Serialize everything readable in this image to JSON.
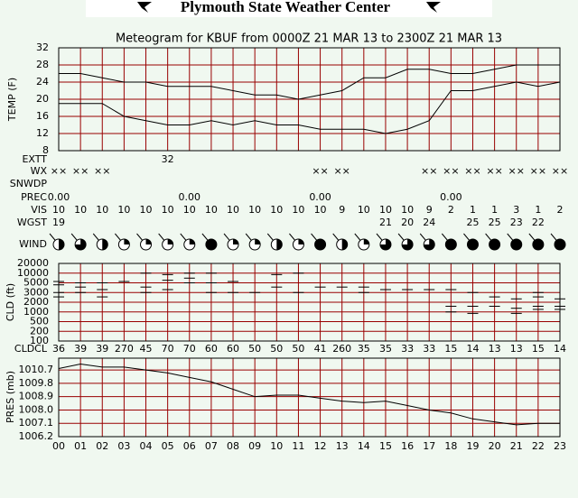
{
  "header": {
    "title": "Plymouth State Weather Center"
  },
  "chart_data": [
    {
      "type": "line",
      "title": "Meteogram for KBUF from 0000Z 21 MAR 13 to 2300Z 21 MAR 13",
      "y_label": "TEMP (F)",
      "ylim": [
        8,
        32
      ],
      "yticks": [
        8,
        12,
        16,
        20,
        24,
        28,
        32
      ],
      "grid": true,
      "series": [
        {
          "color": "#000000",
          "values": [
            26,
            26,
            25,
            24,
            24,
            23,
            23,
            23,
            22,
            21,
            21,
            20,
            21,
            22,
            25,
            25,
            27,
            27,
            26,
            26,
            27,
            28,
            28,
            28
          ]
        },
        {
          "color": "#000000",
          "values": [
            19,
            19,
            19,
            16,
            15,
            14,
            14,
            15,
            14,
            15,
            14,
            14,
            13,
            13,
            13,
            12,
            13,
            15,
            22,
            22,
            23,
            24,
            23,
            24
          ]
        }
      ]
    },
    {
      "type": "scatter",
      "y_label": "CLD (ft)",
      "log_scale": true,
      "color": "#000000",
      "ylim": [
        100,
        20000
      ],
      "yticks": [
        20000,
        10000,
        5000,
        3000,
        2000,
        1000,
        500,
        200,
        100
      ],
      "grid": true,
      "x": [
        0,
        0,
        0,
        0,
        1,
        1,
        1,
        2,
        2,
        2,
        3,
        3,
        4,
        4,
        4,
        4,
        5,
        5,
        5,
        5,
        6,
        6,
        6,
        6,
        7,
        7,
        7,
        7,
        8,
        8,
        8,
        9,
        9,
        10,
        10,
        10,
        11,
        11,
        11,
        12,
        12,
        13,
        13,
        14,
        14,
        14,
        15,
        16,
        17,
        18,
        18,
        18,
        19,
        19,
        19,
        20,
        20,
        21,
        21,
        21,
        22,
        22,
        22,
        22,
        23,
        23,
        23
      ],
      "y": [
        5500,
        4500,
        3000,
        2500,
        5000,
        4000,
        3000,
        5000,
        3500,
        2500,
        20000,
        5500,
        20000,
        10000,
        4000,
        3000,
        20000,
        9000,
        6000,
        3500,
        20000,
        10000,
        7000,
        5000,
        20000,
        10000,
        5000,
        3000,
        20000,
        5500,
        3000,
        20000,
        3000,
        20000,
        9000,
        4000,
        20000,
        10000,
        3000,
        20000,
        4000,
        20000,
        4000,
        20000,
        4000,
        3000,
        3500,
        3500,
        3500,
        3500,
        1500,
        1000,
        3000,
        1500,
        900,
        2500,
        1500,
        2300,
        1300,
        900,
        3000,
        2500,
        1500,
        1200,
        2300,
        1500,
        1200
      ]
    },
    {
      "type": "line",
      "y_label": "PRES (mb)",
      "categories": [
        "00",
        "01",
        "02",
        "03",
        "04",
        "05",
        "06",
        "07",
        "08",
        "09",
        "10",
        "11",
        "12",
        "13",
        "14",
        "15",
        "16",
        "17",
        "18",
        "19",
        "20",
        "21",
        "22",
        "23"
      ],
      "ylim": [
        1006.2,
        1011.5
      ],
      "yticks": [
        1006.2,
        1007.1,
        {
          "value": 1008,
          "label": "1008.0"
        },
        1008.9,
        1009.8,
        1010.7
      ],
      "grid": true,
      "series": [
        {
          "color": "#000000",
          "values": [
            1010.8,
            1011.1,
            1010.9,
            1010.9,
            1010.7,
            1010.5,
            1010.2,
            1009.9,
            1009.4,
            1008.9,
            1009.0,
            1009.0,
            1008.8,
            1008.6,
            1008.5,
            1008.6,
            1008.3,
            1008.0,
            1007.8,
            1007.4,
            1007.2,
            1007.0,
            1007.1,
            1007.1
          ]
        }
      ]
    }
  ],
  "rows": [
    {
      "label": "EXTT",
      "values": [
        null,
        null,
        null,
        null,
        null,
        32,
        null,
        null,
        null,
        null,
        null,
        null,
        null,
        null,
        null,
        null,
        null,
        null,
        null,
        null,
        null,
        null,
        null,
        null
      ]
    },
    {
      "label": "WX",
      "values": [
        "××",
        "××",
        "××",
        null,
        null,
        null,
        null,
        null,
        null,
        null,
        null,
        null,
        "××",
        "××",
        null,
        null,
        null,
        "××",
        "××",
        "××",
        "××",
        "××",
        "××",
        "××"
      ]
    },
    {
      "label": "SNWDP"
    },
    {
      "label": "PREC",
      "values": [
        "0.00",
        null,
        null,
        null,
        null,
        null,
        "0.00",
        null,
        null,
        null,
        null,
        null,
        "0.00",
        null,
        null,
        null,
        null,
        null,
        "0.00",
        null,
        null,
        null,
        null,
        null
      ]
    },
    {
      "label": "VIS",
      "values": [
        10,
        10,
        10,
        10,
        10,
        10,
        10,
        10,
        10,
        10,
        10,
        10,
        10,
        9,
        10,
        10,
        10,
        9,
        2,
        1,
        1,
        3,
        1,
        2
      ]
    },
    {
      "label": "WGST",
      "values": [
        19,
        null,
        null,
        null,
        null,
        null,
        null,
        null,
        null,
        null,
        null,
        null,
        null,
        null,
        null,
        21,
        20,
        24,
        null,
        25,
        25,
        23,
        22,
        null
      ]
    },
    {
      "label": "WIND",
      "sky_cover": [
        0.5,
        0.75,
        0.5,
        0.25,
        0.25,
        0.25,
        0.25,
        1,
        0.25,
        0.25,
        0.5,
        0.25,
        1,
        0.5,
        0.25,
        0.75,
        0.75,
        0.75,
        1,
        1,
        1,
        1,
        1,
        1
      ]
    },
    {
      "label": "CLDCL",
      "values": [
        36,
        39,
        39,
        270,
        45,
        70,
        70,
        60,
        60,
        50,
        50,
        50,
        41,
        260,
        35,
        35,
        33,
        33,
        15,
        14,
        13,
        13,
        15,
        14
      ]
    }
  ]
}
